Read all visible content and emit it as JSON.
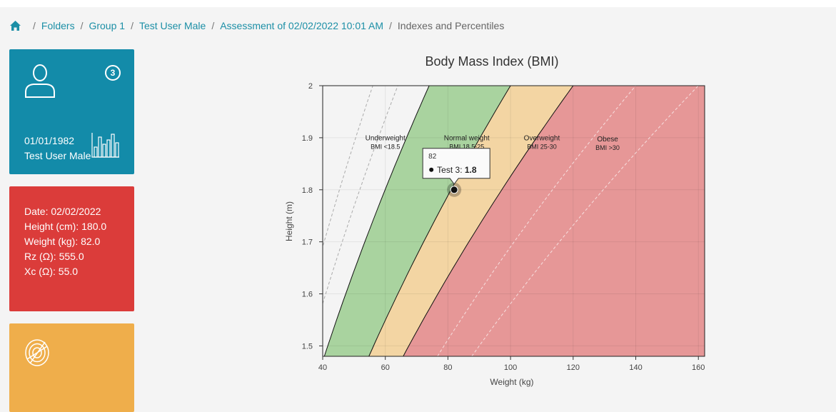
{
  "breadcrumb": {
    "items": [
      "Folders",
      "Group 1",
      "Test User Male",
      "Assessment of 02/02/2022 10:01 AM"
    ],
    "current": "Indexes and Percentiles"
  },
  "user_card": {
    "badge": "3",
    "dob": "01/01/1982",
    "name": "Test User Male",
    "color": "#138ba9"
  },
  "data_card": {
    "color": "#db3c3a",
    "lines": [
      "Date: 02/02/2022",
      "Height (cm): 180.0",
      "Weight (kg): 82.0",
      "Rz (Ω): 555.0",
      "Xc (Ω): 55.0"
    ]
  },
  "third_card": {
    "color": "#efae4b"
  },
  "chart_data": {
    "type": "area",
    "title": "Body Mass Index (BMI)",
    "xlabel": "Weight (kg)",
    "ylabel": "Height (m)",
    "xlim": [
      40,
      162
    ],
    "ylim": [
      1.48,
      2
    ],
    "x_ticks": [
      "40",
      "60",
      "80",
      "100",
      "120",
      "140",
      "160"
    ],
    "y_ticks": [
      "1.5",
      "1.6",
      "1.7",
      "1.8",
      "1.9",
      "2"
    ],
    "zones": [
      {
        "name": "Underweight",
        "range": "BMI <18.5",
        "bmi_min": 0,
        "bmi_max": 18.5,
        "color": "#f4f4f4"
      },
      {
        "name": "Normal weight",
        "range": "BMI 18.5-25",
        "bmi_min": 18.5,
        "bmi_max": 25,
        "color": "#a9d39f"
      },
      {
        "name": "Overweight",
        "range": "BMI 25-30",
        "bmi_min": 25,
        "bmi_max": 30,
        "color": "#f3d5a3"
      },
      {
        "name": "Obese",
        "range": "BMI >30",
        "bmi_min": 30,
        "bmi_max": 100,
        "color": "#e69797"
      }
    ],
    "points": [
      {
        "series": "Test 3",
        "x": 82,
        "y": 1.8
      }
    ],
    "tooltip": {
      "x_label": "82",
      "series": "Test 3",
      "value": "1.8"
    }
  }
}
